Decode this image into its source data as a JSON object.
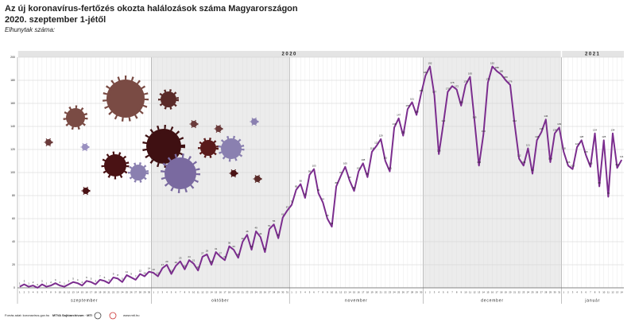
{
  "chart_data": {
    "type": "line",
    "title": "Az új koronavírus-fertőzés okozta halálozások száma Magyarországon",
    "subtitle": "2020. szeptember 1-jétől",
    "y_label": "Elhunytak száma:",
    "source": "Forrás adat: koronavirus.gov.hu",
    "credit": "MTVA Sajtóarchívum · MTI",
    "website": "www.mti.hu",
    "years": [
      "2020",
      "2021"
    ],
    "months": [
      "szeptember",
      "október",
      "november",
      "december",
      "január"
    ],
    "categories": [
      "1",
      "2",
      "3",
      "4",
      "5",
      "6",
      "7",
      "8",
      "9",
      "10",
      "11",
      "12",
      "13",
      "14",
      "15",
      "16",
      "17",
      "18",
      "19",
      "20",
      "21",
      "22",
      "23",
      "24",
      "25",
      "26",
      "27",
      "28",
      "29",
      "30",
      "1",
      "2",
      "3",
      "4",
      "5",
      "6",
      "7",
      "8",
      "9",
      "10",
      "11",
      "12",
      "13",
      "14",
      "15",
      "16",
      "17",
      "18",
      "19",
      "20",
      "21",
      "22",
      "23",
      "24",
      "25",
      "26",
      "27",
      "28",
      "29",
      "30",
      "31",
      "1",
      "2",
      "3",
      "4",
      "5",
      "6",
      "7",
      "8",
      "9",
      "10",
      "11",
      "12",
      "13",
      "14",
      "15",
      "16",
      "17",
      "18",
      "19",
      "20",
      "21",
      "22",
      "23",
      "24",
      "25",
      "26",
      "27",
      "28",
      "29",
      "30",
      "1",
      "2",
      "3",
      "4",
      "5",
      "6",
      "7",
      "8",
      "9",
      "10",
      "11",
      "12",
      "13",
      "14",
      "15",
      "16",
      "17",
      "18",
      "19",
      "20",
      "21",
      "22",
      "23",
      "24",
      "25",
      "26",
      "27",
      "28",
      "29",
      "30",
      "31",
      "1",
      "2",
      "3",
      "4",
      "5",
      "6",
      "7",
      "8",
      "9",
      "10",
      "11",
      "12",
      "13",
      "14"
    ],
    "series": [
      {
        "name": "Elhunytak száma",
        "color": "#7b2d8e",
        "values": [
          1,
          3,
          1,
          2,
          0,
          3,
          1,
          2,
          4,
          2,
          1,
          3,
          5,
          4,
          2,
          6,
          5,
          3,
          7,
          6,
          4,
          9,
          8,
          5,
          11,
          9,
          7,
          12,
          10,
          14,
          13,
          10,
          17,
          20,
          12,
          19,
          23,
          16,
          24,
          21,
          15,
          27,
          29,
          20,
          31,
          27,
          24,
          36,
          33,
          26,
          40,
          46,
          33,
          49,
          44,
          31,
          51,
          55,
          43,
          61,
          67,
          72,
          85,
          90,
          78,
          98,
          103,
          82,
          74,
          60,
          53,
          88,
          97,
          105,
          93,
          84,
          101,
          108,
          96,
          118,
          123,
          129,
          110,
          101,
          139,
          147,
          132,
          155,
          161,
          150,
          168,
          184,
          192,
          167,
          116,
          142,
          170,
          175,
          172,
          158,
          176,
          183,
          145,
          106,
          133,
          178,
          192,
          188,
          185,
          180,
          176,
          142,
          112,
          106,
          121,
          99,
          128,
          135,
          146,
          109,
          134,
          139,
          118,
          106,
          103,
          122,
          128,
          115,
          105,
          134,
          88,
          128,
          79,
          134,
          104,
          111
        ]
      }
    ],
    "ylim": [
      0,
      200
    ],
    "yticks": [
      0,
      20,
      40,
      60,
      80,
      100,
      120,
      140,
      160,
      180,
      200
    ],
    "grid": true
  }
}
